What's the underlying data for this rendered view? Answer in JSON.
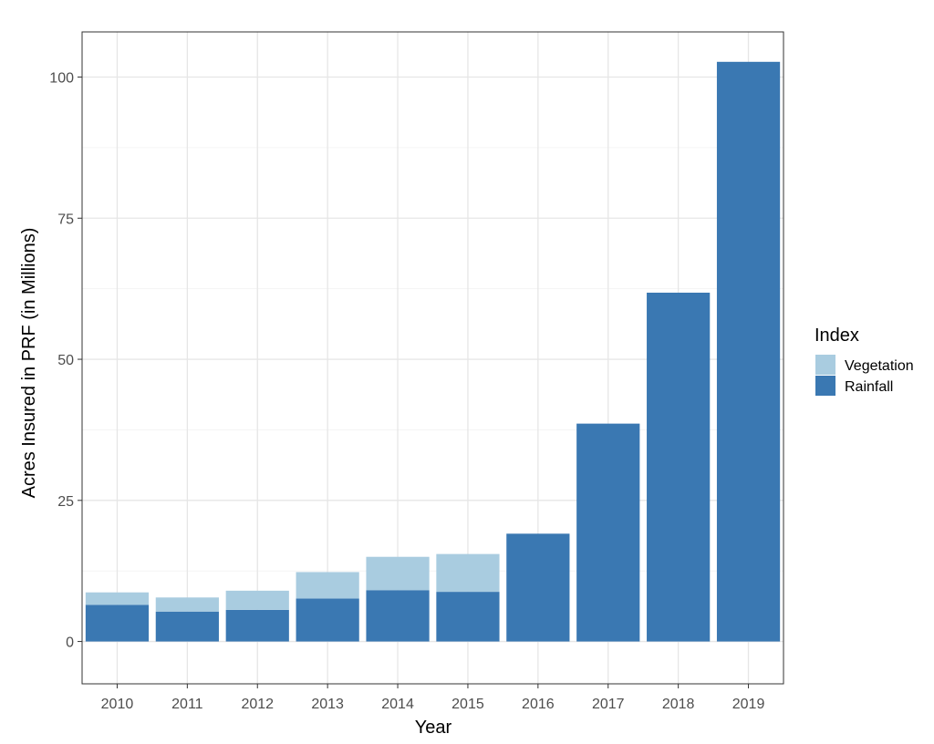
{
  "chart_data": {
    "type": "bar",
    "stacked": true,
    "categories": [
      "2010",
      "2011",
      "2012",
      "2013",
      "2014",
      "2015",
      "2016",
      "2017",
      "2018",
      "2019"
    ],
    "series": [
      {
        "name": "Rainfall",
        "color": "#3A78B2",
        "values": [
          6.5,
          5.3,
          5.6,
          7.6,
          9.1,
          8.8,
          19.1,
          38.6,
          61.8,
          102.7
        ]
      },
      {
        "name": "Vegetation",
        "color": "#A9CCE0",
        "values": [
          2.2,
          2.5,
          3.4,
          4.7,
          5.9,
          6.7,
          0,
          0,
          0,
          0
        ]
      }
    ],
    "title": "",
    "xlabel": "Year",
    "ylabel": "Acres Insured in PRF (in Millions)",
    "ylim": [
      -7.5,
      108
    ],
    "yticks": [
      0,
      25,
      50,
      75,
      100
    ],
    "grid": true,
    "legend": {
      "title": "Index",
      "placement": "right",
      "items": [
        "Vegetation",
        "Rainfall"
      ]
    }
  }
}
